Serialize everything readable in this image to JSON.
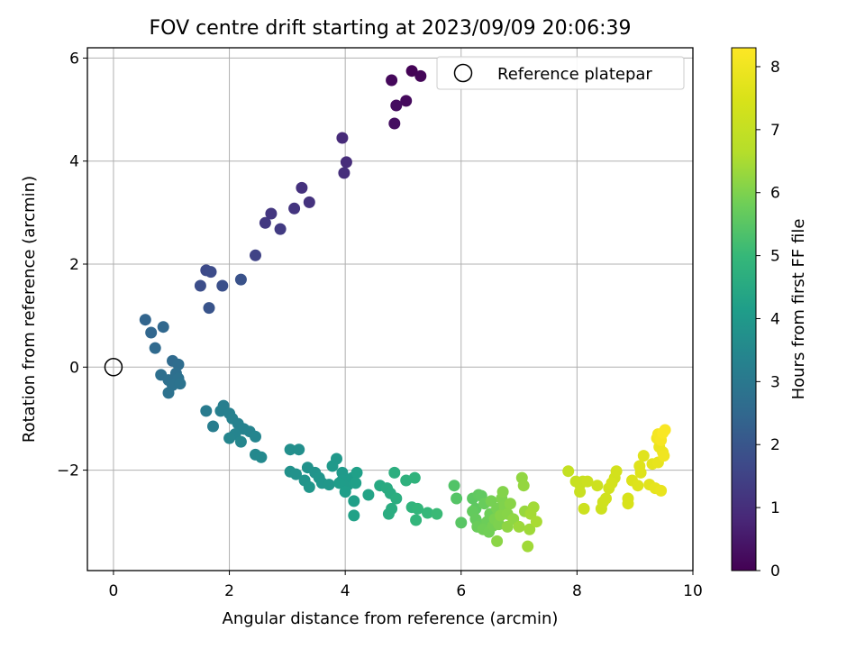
{
  "chart_data": {
    "type": "scatter",
    "title": "FOV centre drift starting at 2023/09/09 20:06:39",
    "xlabel": "Angular distance from reference (arcmin)",
    "ylabel": "Rotation from reference (arcmin)",
    "xlim": [
      -0.45,
      10
    ],
    "ylim": [
      -3.95,
      6.2
    ],
    "x_ticks": [
      0,
      2,
      4,
      6,
      8,
      10
    ],
    "x_tick_labels": [
      "0",
      "2",
      "4",
      "6",
      "8",
      "10"
    ],
    "y_ticks": [
      -2,
      0,
      2,
      4,
      6
    ],
    "y_tick_labels": [
      "−2",
      "0",
      "2",
      "4",
      "6"
    ],
    "grid": true,
    "legend": {
      "position": "top-right",
      "entries": [
        {
          "label": "Reference platepar",
          "marker": "open-circle"
        }
      ]
    },
    "reference_point": {
      "x": 0,
      "y": 0
    },
    "colorbar": {
      "label": "Hours from first FF file",
      "colormap": "viridis",
      "range": [
        0,
        8.3
      ],
      "ticks": [
        0,
        1,
        2,
        3,
        4,
        5,
        6,
        7,
        8
      ],
      "tick_labels": [
        "0",
        "1",
        "2",
        "3",
        "4",
        "5",
        "6",
        "7",
        "8"
      ]
    },
    "series": [
      {
        "points": [
          [
            5.15,
            5.75,
            0.05
          ],
          [
            5.3,
            5.65,
            0.1
          ],
          [
            4.8,
            5.57,
            0.15
          ],
          [
            5.05,
            5.17,
            0.2
          ],
          [
            4.88,
            5.08,
            0.25
          ],
          [
            4.85,
            4.73,
            0.3
          ],
          [
            3.95,
            4.45,
            0.9
          ],
          [
            4.02,
            3.98,
            0.95
          ],
          [
            3.98,
            3.77,
            1.0
          ],
          [
            3.25,
            3.48,
            1.05
          ],
          [
            3.38,
            3.2,
            1.1
          ],
          [
            3.12,
            3.08,
            1.15
          ],
          [
            2.72,
            2.98,
            1.2
          ],
          [
            2.62,
            2.8,
            1.25
          ],
          [
            2.88,
            2.68,
            1.3
          ],
          [
            2.45,
            2.17,
            1.5
          ],
          [
            1.6,
            1.88,
            1.7
          ],
          [
            1.68,
            1.85,
            1.75
          ],
          [
            1.5,
            1.58,
            1.8
          ],
          [
            1.88,
            1.58,
            1.85
          ],
          [
            2.2,
            1.7,
            1.9
          ],
          [
            1.65,
            1.15,
            1.95
          ],
          [
            0.55,
            0.92,
            2.4
          ],
          [
            0.65,
            0.67,
            2.45
          ],
          [
            0.86,
            0.78,
            2.5
          ],
          [
            0.72,
            0.37,
            2.55
          ],
          [
            1.02,
            0.12,
            2.6
          ],
          [
            1.12,
            0.05,
            2.65
          ],
          [
            0.82,
            -0.15,
            2.7
          ],
          [
            1.08,
            -0.12,
            2.72
          ],
          [
            0.95,
            -0.25,
            2.75
          ],
          [
            1.12,
            -0.22,
            2.78
          ],
          [
            1.02,
            -0.35,
            2.8
          ],
          [
            0.95,
            -0.5,
            2.82
          ],
          [
            1.15,
            -0.32,
            2.85
          ],
          [
            1.6,
            -0.85,
            3.1
          ],
          [
            1.72,
            -1.15,
            3.15
          ],
          [
            1.9,
            -0.75,
            3.2
          ],
          [
            1.85,
            -0.85,
            3.22
          ],
          [
            2.0,
            -0.9,
            3.25
          ],
          [
            2.05,
            -1.0,
            3.28
          ],
          [
            2.15,
            -1.1,
            3.3
          ],
          [
            2.25,
            -1.2,
            3.32
          ],
          [
            2.35,
            -1.25,
            3.35
          ],
          [
            2.1,
            -1.3,
            3.38
          ],
          [
            2.45,
            -1.35,
            3.4
          ],
          [
            2.0,
            -1.38,
            3.42
          ],
          [
            2.2,
            -1.45,
            3.45
          ],
          [
            2.45,
            -1.7,
            3.5
          ],
          [
            2.55,
            -1.75,
            3.52
          ],
          [
            3.05,
            -1.6,
            3.7
          ],
          [
            3.2,
            -1.6,
            3.72
          ],
          [
            3.05,
            -2.03,
            3.75
          ],
          [
            3.15,
            -2.08,
            3.78
          ],
          [
            3.35,
            -1.95,
            3.8
          ],
          [
            3.48,
            -2.05,
            3.82
          ],
          [
            3.3,
            -2.2,
            3.85
          ],
          [
            3.55,
            -2.15,
            3.88
          ],
          [
            3.6,
            -2.25,
            3.9
          ],
          [
            3.38,
            -2.33,
            3.92
          ],
          [
            3.72,
            -2.28,
            3.95
          ],
          [
            3.85,
            -1.78,
            3.97
          ],
          [
            3.78,
            -1.92,
            4.0
          ],
          [
            3.95,
            -2.05,
            4.02
          ],
          [
            3.95,
            -2.2,
            4.05
          ],
          [
            4.05,
            -2.28,
            4.08
          ],
          [
            4.12,
            -2.15,
            4.1
          ],
          [
            3.9,
            -2.25,
            4.12
          ],
          [
            4.0,
            -2.42,
            4.15
          ],
          [
            4.15,
            -2.6,
            4.18
          ],
          [
            4.2,
            -2.05,
            4.2
          ],
          [
            4.18,
            -2.25,
            4.22
          ],
          [
            4.15,
            -2.88,
            4.25
          ],
          [
            4.4,
            -2.48,
            4.3
          ],
          [
            4.6,
            -2.3,
            4.5
          ],
          [
            4.72,
            -2.35,
            4.55
          ],
          [
            4.78,
            -2.45,
            4.58
          ],
          [
            4.8,
            -2.75,
            4.6
          ],
          [
            4.75,
            -2.85,
            4.62
          ],
          [
            4.88,
            -2.55,
            4.65
          ],
          [
            4.85,
            -2.05,
            4.68
          ],
          [
            5.05,
            -2.2,
            4.75
          ],
          [
            5.2,
            -2.15,
            4.8
          ],
          [
            5.15,
            -2.72,
            4.85
          ],
          [
            5.22,
            -2.97,
            4.9
          ],
          [
            5.25,
            -2.75,
            4.92
          ],
          [
            5.42,
            -2.83,
            4.98
          ],
          [
            5.58,
            -2.85,
            5.05
          ],
          [
            5.88,
            -2.3,
            5.4
          ],
          [
            5.92,
            -2.55,
            5.45
          ],
          [
            6.0,
            -3.02,
            5.5
          ],
          [
            6.2,
            -2.55,
            5.55
          ],
          [
            6.25,
            -2.75,
            5.58
          ],
          [
            6.3,
            -2.48,
            5.6
          ],
          [
            6.35,
            -2.5,
            5.62
          ],
          [
            6.2,
            -2.8,
            5.65
          ],
          [
            6.25,
            -2.95,
            5.68
          ],
          [
            6.32,
            -3.05,
            5.7
          ],
          [
            6.4,
            -2.65,
            5.72
          ],
          [
            6.28,
            -3.1,
            5.75
          ],
          [
            6.45,
            -3.0,
            5.78
          ],
          [
            6.5,
            -2.85,
            5.8
          ],
          [
            6.38,
            -3.15,
            5.82
          ],
          [
            6.48,
            -3.2,
            5.85
          ],
          [
            6.55,
            -3.08,
            5.88
          ],
          [
            6.52,
            -2.6,
            5.9
          ],
          [
            6.62,
            -2.75,
            5.92
          ],
          [
            6.58,
            -2.95,
            5.95
          ],
          [
            6.65,
            -3.05,
            5.98
          ],
          [
            6.7,
            -2.55,
            6.0
          ],
          [
            6.75,
            -2.7,
            6.02
          ],
          [
            6.72,
            -2.42,
            6.05
          ],
          [
            6.68,
            -2.88,
            6.08
          ],
          [
            6.8,
            -2.85,
            6.1
          ],
          [
            6.85,
            -2.65,
            6.12
          ],
          [
            6.62,
            -3.38,
            6.15
          ],
          [
            6.8,
            -3.1,
            6.18
          ],
          [
            6.9,
            -2.95,
            6.2
          ],
          [
            7.05,
            -2.15,
            6.22
          ],
          [
            7.08,
            -2.3,
            6.25
          ],
          [
            7.1,
            -2.8,
            6.3
          ],
          [
            7.0,
            -3.1,
            6.35
          ],
          [
            7.18,
            -3.15,
            6.38
          ],
          [
            7.15,
            -3.48,
            6.4
          ],
          [
            7.25,
            -2.72,
            6.42
          ],
          [
            7.2,
            -2.85,
            6.45
          ],
          [
            7.3,
            -3.0,
            6.5
          ],
          [
            7.85,
            -2.02,
            7.0
          ],
          [
            7.98,
            -2.22,
            7.05
          ],
          [
            8.05,
            -2.28,
            7.08
          ],
          [
            8.1,
            -2.22,
            7.1
          ],
          [
            8.05,
            -2.42,
            7.12
          ],
          [
            8.18,
            -2.22,
            7.15
          ],
          [
            8.12,
            -2.75,
            7.18
          ],
          [
            8.35,
            -2.3,
            7.2
          ],
          [
            8.42,
            -2.75,
            7.22
          ],
          [
            8.45,
            -2.62,
            7.25
          ],
          [
            8.5,
            -2.55,
            7.28
          ],
          [
            8.55,
            -2.35,
            7.3
          ],
          [
            8.65,
            -2.15,
            7.32
          ],
          [
            8.68,
            -2.02,
            7.35
          ],
          [
            8.6,
            -2.25,
            7.38
          ],
          [
            8.88,
            -2.55,
            7.45
          ],
          [
            8.88,
            -2.65,
            7.48
          ],
          [
            8.95,
            -2.2,
            7.55
          ],
          [
            9.05,
            -2.3,
            7.58
          ],
          [
            9.1,
            -2.05,
            7.6
          ],
          [
            9.08,
            -1.92,
            7.62
          ],
          [
            9.15,
            -1.72,
            7.65
          ],
          [
            9.25,
            -2.28,
            7.7
          ],
          [
            9.3,
            -1.88,
            7.75
          ],
          [
            9.35,
            -2.35,
            7.78
          ],
          [
            9.4,
            -1.85,
            7.8
          ],
          [
            9.45,
            -2.4,
            7.85
          ],
          [
            9.42,
            -1.55,
            7.9
          ],
          [
            9.48,
            -1.65,
            7.95
          ],
          [
            9.5,
            -1.72,
            8.0
          ],
          [
            9.38,
            -1.38,
            8.05
          ],
          [
            9.4,
            -1.3,
            8.1
          ],
          [
            9.45,
            -1.42,
            8.15
          ],
          [
            9.52,
            -1.22,
            8.2
          ],
          [
            9.48,
            -1.28,
            8.22
          ]
        ]
      }
    ]
  }
}
